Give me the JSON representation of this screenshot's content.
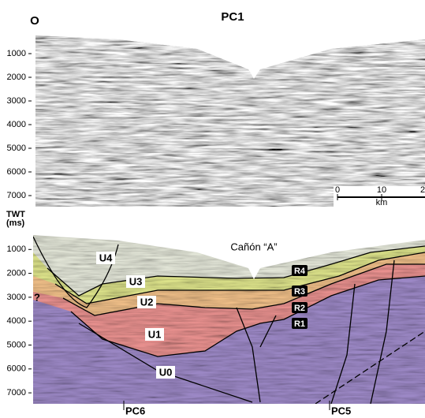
{
  "header": {
    "left_label": "O",
    "title": "PC1"
  },
  "top_panel": {
    "ylim": [
      0,
      8000
    ],
    "yticks": [
      1000,
      2000,
      3000,
      4000,
      5000,
      6000,
      7000
    ],
    "scale_bar": {
      "ticks": [
        "0",
        "10",
        "2"
      ],
      "unit": "km"
    }
  },
  "bottom_panel": {
    "axis_title": [
      "TWT",
      "(ms)"
    ],
    "ylim": [
      0,
      8000
    ],
    "yticks": [
      1000,
      2000,
      3000,
      4000,
      5000,
      6000,
      7000
    ],
    "canyon_label": "Cañón “A”",
    "units": [
      "U4",
      "U3",
      "U2",
      "U1",
      "U0"
    ],
    "reflectors": [
      "R4",
      "R3",
      "R2",
      "R1"
    ],
    "question": "?",
    "crossings": [
      "PC6",
      "PC5"
    ]
  }
}
